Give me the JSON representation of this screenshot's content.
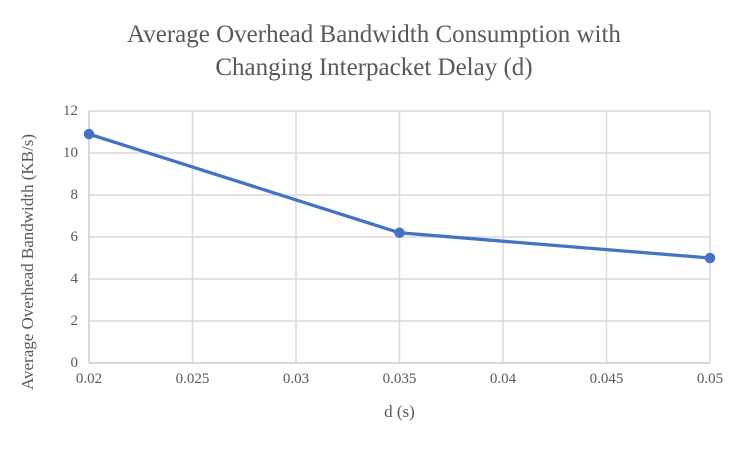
{
  "title_line1": "Average Overhead Bandwidth Consumption with",
  "title_line2": "Changing Interpacket Delay (d)",
  "chart_data": {
    "type": "line",
    "title": "Average Overhead Bandwidth Consumption with Changing Interpacket Delay (d)",
    "xlabel": "d (s)",
    "ylabel": "Average Overhead Bandwidth (KB/s)",
    "series": [
      {
        "name": "Average Overhead Bandwidth",
        "x": [
          0.02,
          0.035,
          0.05
        ],
        "y": [
          10.9,
          6.2,
          5.0
        ]
      }
    ],
    "xlim": [
      0.02,
      0.05
    ],
    "ylim": [
      0,
      12
    ],
    "xticks": {
      "values": [
        0.02,
        0.025,
        0.03,
        0.035,
        0.04,
        0.045,
        0.05
      ],
      "labels": [
        "0.02",
        "0.025",
        "0.03",
        "0.035",
        "0.04",
        "0.045",
        "0.05"
      ]
    },
    "yticks": {
      "values": [
        0,
        2,
        4,
        6,
        8,
        10,
        12
      ],
      "labels": [
        "0",
        "2",
        "4",
        "6",
        "8",
        "10",
        "12"
      ]
    },
    "grid": true,
    "legend": false,
    "marker": "circle",
    "colors": {
      "line": "#4472C4",
      "marker": "#4472C4",
      "gridline": "#D9D9D9",
      "axis_line": "#D2D2D2",
      "text": "#595959",
      "background": "#FFFFFF"
    }
  }
}
